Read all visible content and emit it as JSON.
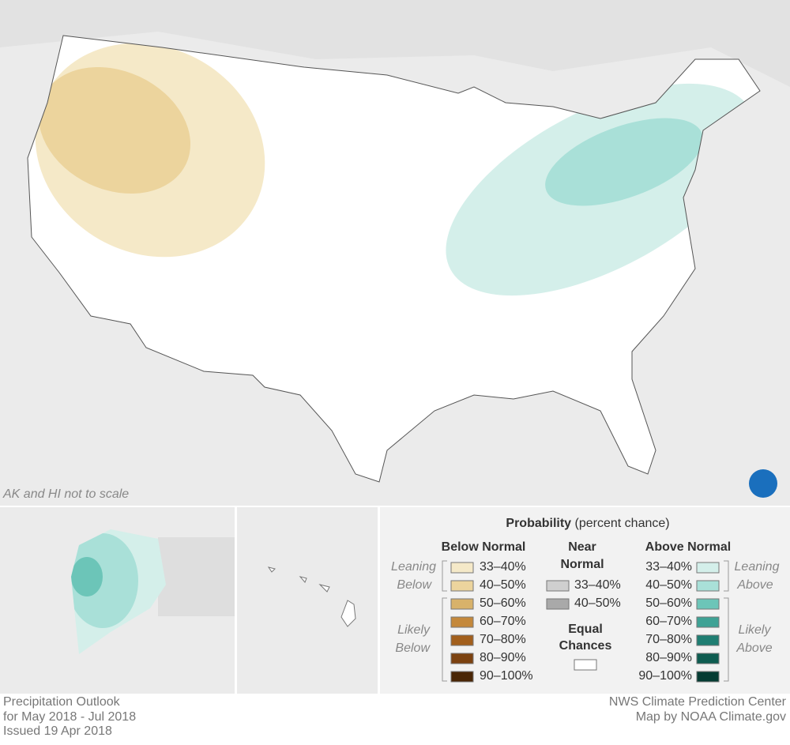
{
  "map_note": "AK and HI not to scale",
  "legend": {
    "title": "Probability",
    "subtitle": "(percent chance)",
    "below": {
      "heading": "Below Normal",
      "leaning": [
        "Leaning",
        "Below"
      ],
      "likely": [
        "Likely",
        "Below"
      ],
      "ranges": [
        "33–40%",
        "40–50%",
        "50–60%",
        "60–70%",
        "70–80%",
        "80–90%",
        "90–100%"
      ]
    },
    "near": {
      "heading": [
        "Near",
        "Normal"
      ],
      "ranges": [
        "33–40%",
        "40–50%"
      ]
    },
    "equal": [
      "Equal",
      "Chances"
    ],
    "above": {
      "heading": "Above Normal",
      "leaning": [
        "Leaning",
        "Above"
      ],
      "likely": [
        "Likely",
        "Above"
      ],
      "ranges": [
        "33–40%",
        "40–50%",
        "50–60%",
        "60–70%",
        "70–80%",
        "80–90%",
        "90–100%"
      ]
    }
  },
  "footer": {
    "left": [
      "Precipitation Outlook",
      "for May 2018 - Jul 2018",
      "Issued 19 Apr 2018"
    ],
    "right": [
      "NWS Climate Prediction Center",
      "Map by NOAA Climate.gov"
    ]
  }
}
